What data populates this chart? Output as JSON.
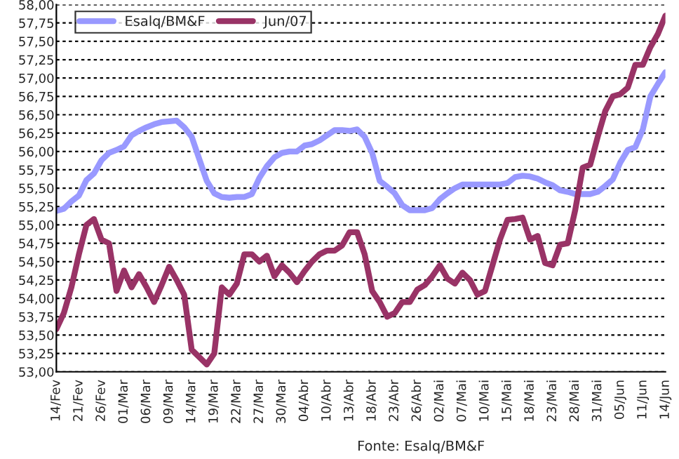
{
  "chart_data": {
    "type": "line",
    "categories": [
      "14/Fev",
      null,
      null,
      "21/Fev",
      null,
      null,
      "26/Fev",
      null,
      null,
      "01/Mar",
      null,
      null,
      "06/Mar",
      null,
      null,
      "09/Mar",
      null,
      null,
      "14/Mar",
      null,
      null,
      "19/Mar",
      null,
      null,
      "22/Mar",
      null,
      null,
      "27/Mar",
      null,
      null,
      "30/Mar",
      null,
      null,
      "04/Abr",
      null,
      null,
      "10/Abr",
      null,
      null,
      "13/Abr",
      null,
      null,
      "18/Abr",
      null,
      null,
      "23/Abr",
      null,
      null,
      "26/Abr",
      null,
      null,
      "02/Mai",
      null,
      null,
      "07/Mai",
      null,
      null,
      "10/Mai",
      null,
      null,
      "15/Mai",
      null,
      null,
      "18/Mai",
      null,
      null,
      "23/Mai",
      null,
      null,
      "28/Mai",
      null,
      null,
      "31/Mai",
      null,
      null,
      "05/Jun",
      null,
      null,
      "11/Jun",
      null,
      null,
      "14/Jun"
    ],
    "series": [
      {
        "name": "Esalq/BM&F",
        "color": "#9999ff",
        "values": [
          55.19,
          55.22,
          55.32,
          55.4,
          55.61,
          55.7,
          55.88,
          55.98,
          56.02,
          56.07,
          56.22,
          56.28,
          56.33,
          56.37,
          56.4,
          56.41,
          56.42,
          56.33,
          56.2,
          55.9,
          55.6,
          55.43,
          55.38,
          55.37,
          55.38,
          55.38,
          55.42,
          55.64,
          55.8,
          55.92,
          55.98,
          56.0,
          56.0,
          56.08,
          56.1,
          56.15,
          56.22,
          56.29,
          56.29,
          56.28,
          56.3,
          56.2,
          55.98,
          55.6,
          55.52,
          55.43,
          55.27,
          55.2,
          55.2,
          55.2,
          55.23,
          55.35,
          55.43,
          55.5,
          55.55,
          55.55,
          55.55,
          55.55,
          55.55,
          55.55,
          55.57,
          55.65,
          55.67,
          55.66,
          55.63,
          55.58,
          55.54,
          55.47,
          55.45,
          55.42,
          55.42,
          55.42,
          55.45,
          55.53,
          55.62,
          55.85,
          56.02,
          56.06,
          56.3,
          56.75,
          56.92,
          57.08
        ]
      },
      {
        "name": "Jun/07",
        "color": "#993366",
        "values": [
          53.58,
          53.8,
          54.15,
          54.6,
          55.0,
          55.08,
          54.8,
          54.75,
          54.1,
          54.38,
          54.15,
          54.33,
          54.15,
          53.95,
          54.18,
          54.43,
          54.25,
          54.05,
          53.3,
          53.2,
          53.1,
          53.25,
          54.15,
          54.05,
          54.2,
          54.6,
          54.6,
          54.5,
          54.58,
          54.3,
          54.45,
          54.35,
          54.22,
          54.37,
          54.5,
          54.6,
          54.65,
          54.65,
          54.72,
          54.9,
          54.9,
          54.6,
          54.1,
          53.95,
          53.75,
          53.8,
          53.95,
          53.95,
          54.12,
          54.18,
          54.3,
          54.45,
          54.27,
          54.2,
          54.35,
          54.25,
          54.05,
          54.1,
          54.45,
          54.8,
          55.07,
          55.08,
          55.1,
          54.8,
          54.85,
          54.48,
          54.45,
          54.73,
          54.75,
          55.2,
          55.78,
          55.82,
          56.2,
          56.55,
          56.75,
          56.78,
          56.87,
          57.18,
          57.18,
          57.42,
          57.6,
          57.85
        ]
      }
    ],
    "ylim": [
      53,
      58
    ],
    "yticks": [
      {
        "value": 53,
        "label": "53,00"
      },
      {
        "value": 53.25,
        "label": "53,25"
      },
      {
        "value": 53.5,
        "label": "53,50"
      },
      {
        "value": 53.75,
        "label": "53,75"
      },
      {
        "value": 54,
        "label": "54,00"
      },
      {
        "value": 54.25,
        "label": "54,25"
      },
      {
        "value": 54.5,
        "label": "54,50"
      },
      {
        "value": 54.75,
        "label": "54,75"
      },
      {
        "value": 55,
        "label": "55,00"
      },
      {
        "value": 55.25,
        "label": "55,25"
      },
      {
        "value": 55.5,
        "label": "55,50"
      },
      {
        "value": 55.75,
        "label": "55,75"
      },
      {
        "value": 56,
        "label": "56,00"
      },
      {
        "value": 56.25,
        "label": "56,25"
      },
      {
        "value": 56.5,
        "label": "56,50"
      },
      {
        "value": 56.75,
        "label": "56,75"
      },
      {
        "value": 57,
        "label": "57,00"
      },
      {
        "value": 57.25,
        "label": "57,25"
      },
      {
        "value": 57.5,
        "label": "57,50"
      },
      {
        "value": 57.75,
        "label": "57,75"
      },
      {
        "value": 58,
        "label": "58,00"
      }
    ],
    "grid": "y",
    "legend": "top left",
    "line_style": "solid",
    "annotations": [
      "Fonte: Esalq/BM&F"
    ]
  }
}
